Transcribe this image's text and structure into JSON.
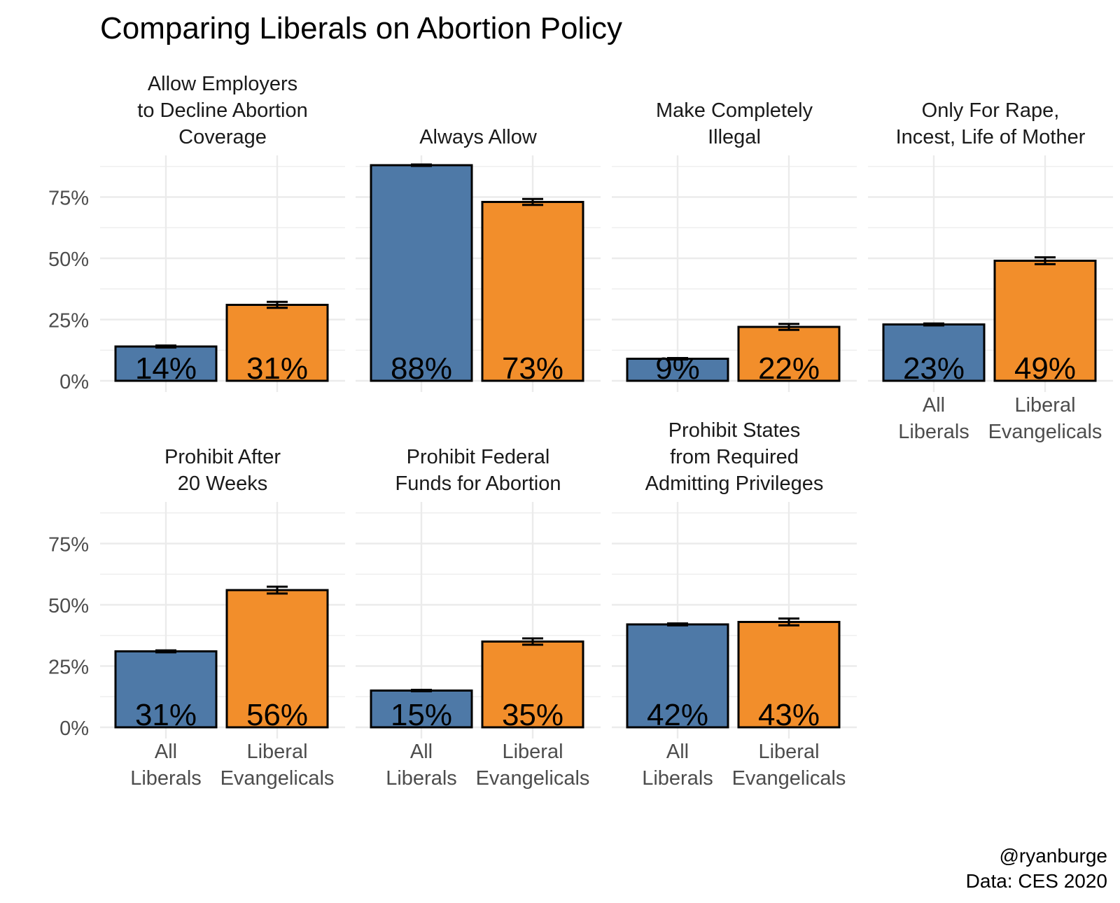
{
  "chart_data": {
    "type": "bar",
    "title": "Comparing Liberals on Abortion Policy",
    "caption": [
      "@ryanburge",
      "Data: CES 2020"
    ],
    "xlabel": "",
    "ylabel": "",
    "ylim": [
      0,
      0.92
    ],
    "y_ticks": [
      0,
      0.25,
      0.5,
      0.75
    ],
    "y_tick_labels": [
      "0%",
      "25%",
      "50%",
      "75%"
    ],
    "grid": true,
    "legend": "none",
    "categories": [
      "All\nLiberals",
      "Liberal\nEvangelicals"
    ],
    "colors": {
      "All Liberals": "#4E79A7",
      "Liberal Evangelicals": "#F28E2B"
    },
    "facets": [
      {
        "title": "Allow Employers\nto Decline Abortion\nCoverage",
        "values": [
          0.14,
          0.31
        ],
        "labels": [
          "14%",
          "31%"
        ],
        "errors": [
          0.004,
          0.012
        ]
      },
      {
        "title": "Always Allow",
        "values": [
          0.88,
          0.73
        ],
        "labels": [
          "88%",
          "73%"
        ],
        "errors": [
          0.003,
          0.012
        ]
      },
      {
        "title": "Make Completely\nIllegal",
        "values": [
          0.09,
          0.22
        ],
        "labels": [
          "9%",
          "22%"
        ],
        "errors": [
          0.003,
          0.012
        ]
      },
      {
        "title": "Only For Rape,\nIncest, Life of Mother",
        "values": [
          0.23,
          0.49
        ],
        "labels": [
          "23%",
          "49%"
        ],
        "errors": [
          0.004,
          0.014
        ]
      },
      {
        "title": "Prohibit After\n20 Weeks",
        "values": [
          0.31,
          0.56
        ],
        "labels": [
          "31%",
          "56%"
        ],
        "errors": [
          0.004,
          0.014
        ]
      },
      {
        "title": "Prohibit Federal\nFunds for Abortion",
        "values": [
          0.15,
          0.35
        ],
        "labels": [
          "15%",
          "35%"
        ],
        "errors": [
          0.003,
          0.013
        ]
      },
      {
        "title": "Prohibit States\nfrom Required\nAdmitting Privileges",
        "values": [
          0.42,
          0.43
        ],
        "labels": [
          "42%",
          "43%"
        ],
        "errors": [
          0.004,
          0.014
        ]
      }
    ]
  }
}
